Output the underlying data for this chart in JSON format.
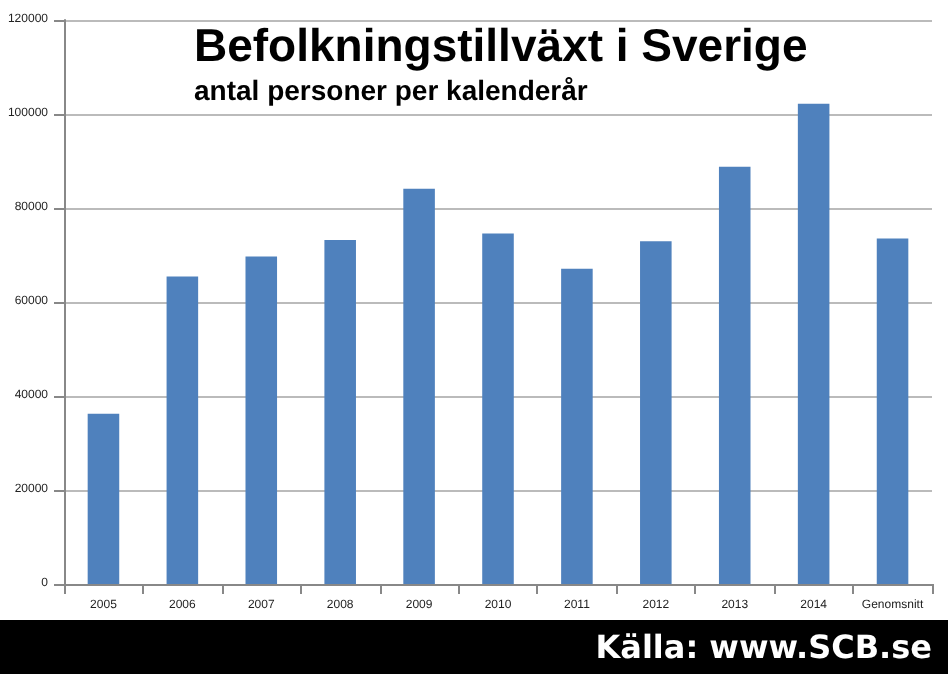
{
  "chart_data": {
    "type": "bar",
    "title": "Befolkningstillväxt i Sverige",
    "subtitle": "antal personer per kalenderår",
    "categories": [
      "2005",
      "2006",
      "2007",
      "2008",
      "2009",
      "2010",
      "2011",
      "2012",
      "2013",
      "2014",
      "Genomsnitt"
    ],
    "values": [
      36200,
      65400,
      69700,
      73200,
      84100,
      74600,
      67100,
      72900,
      88800,
      102200,
      73500
    ],
    "color": "#4f81bd",
    "ylim": [
      0,
      120000
    ],
    "yticks": [
      0,
      20000,
      40000,
      60000,
      80000,
      100000,
      120000
    ],
    "grid": "y",
    "annotations": [
      "Källa: www.SCB.se"
    ]
  }
}
